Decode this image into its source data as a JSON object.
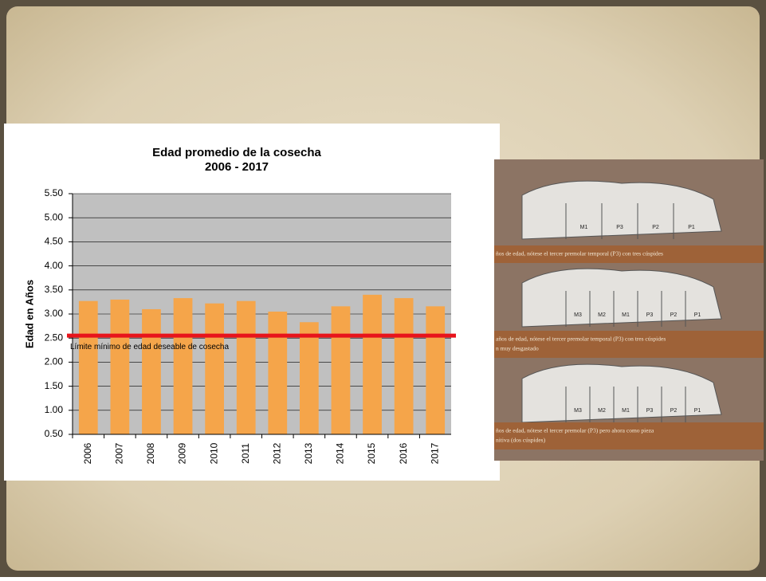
{
  "chart_data": {
    "type": "bar",
    "title": "Edad promedio de la cosecha",
    "subtitle": "2006 - 2017",
    "y_label": "Edad en Años",
    "categories": [
      "2006",
      "2007",
      "2008",
      "2009",
      "2010",
      "2011",
      "2012",
      "2013",
      "2014",
      "2015",
      "2016",
      "2017"
    ],
    "values": [
      3.27,
      3.3,
      3.1,
      3.33,
      3.22,
      3.27,
      3.05,
      2.83,
      3.16,
      3.4,
      3.33,
      3.16
    ],
    "color": "#f5a54a",
    "ylim": [
      0.5,
      5.5
    ],
    "yticks": [
      {
        "value": 0.5,
        "label": "0.50"
      },
      {
        "value": 1,
        "label": "1.00"
      },
      {
        "value": 1.5,
        "label": "1.50"
      },
      {
        "value": 2,
        "label": "2.00"
      },
      {
        "value": 2.5,
        "label": "2.50"
      },
      {
        "value": 3,
        "label": "3.00"
      },
      {
        "value": 3.5,
        "label": "3.50"
      },
      {
        "value": 4,
        "label": "4.00"
      },
      {
        "value": 4.5,
        "label": "4.50"
      },
      {
        "value": 5,
        "label": "5.00"
      },
      {
        "value": 5.5,
        "label": "5.50"
      }
    ],
    "grid": true,
    "reference_line": {
      "value": 2.55,
      "label": "Límite mínimo de edad deseable de cosecha",
      "color": "#e8141b"
    }
  },
  "panel": {
    "captions": [
      [
        "ños de edad, nótese el tercer premolar temporal (P3) con tres cúspides"
      ],
      [
        "años de edad, nótese el tercer premolar temporal (P3) con tres cúspides",
        "n muy desgastado"
      ],
      [
        "ños de edad, nótese el tercer premolar (P3) pero ahora como pieza",
        "nitiva (dos cúspides)"
      ]
    ],
    "teeth": [
      [
        "M1",
        "P3",
        "P2",
        "P1"
      ],
      [
        "M3",
        "M2",
        "M1",
        "P3",
        "P2",
        "P1"
      ],
      [
        "M3",
        "M2",
        "M1",
        "P3",
        "P2",
        "P1"
      ]
    ]
  }
}
